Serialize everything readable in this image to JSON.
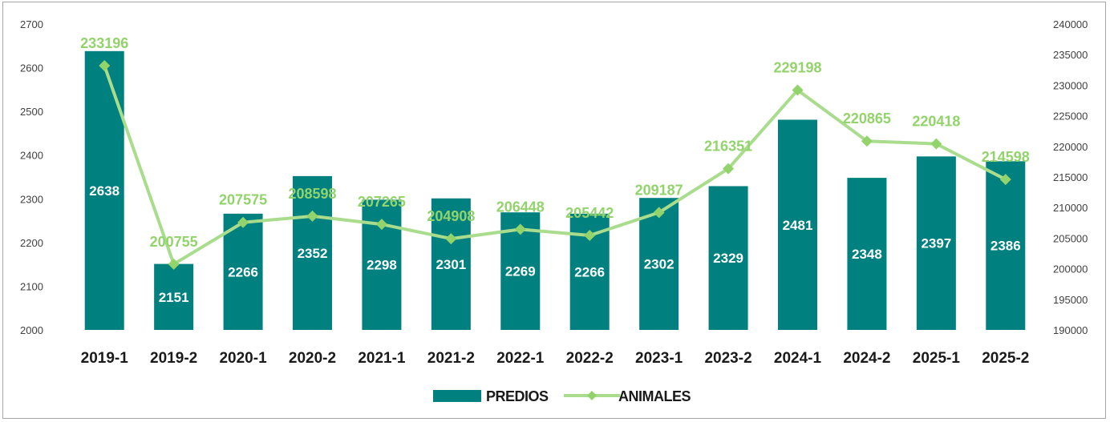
{
  "chart_data": {
    "type": "bar",
    "categories": [
      "2019-1",
      "2019-2",
      "2020-1",
      "2020-2",
      "2021-1",
      "2021-2",
      "2022-1",
      "2022-2",
      "2023-1",
      "2023-2",
      "2024-1",
      "2024-2",
      "2025-1",
      "2025-2"
    ],
    "series": [
      {
        "name": "PREDIOS",
        "type": "bar",
        "axis": "left",
        "color": "#00807f",
        "values": [
          2638,
          2151,
          2266,
          2352,
          2298,
          2301,
          2269,
          2266,
          2302,
          2329,
          2481,
          2348,
          2397,
          2386
        ]
      },
      {
        "name": "ANIMALES",
        "type": "line",
        "axis": "right",
        "color": "#a9dc8c",
        "label_color": "#92d46b",
        "marker": "diamond",
        "values": [
          233196,
          200755,
          207575,
          208598,
          207265,
          204908,
          206448,
          205442,
          209187,
          216351,
          229198,
          220865,
          220418,
          214598
        ]
      }
    ],
    "ylim_left": [
      2000,
      2700
    ],
    "yticks_left": [
      "2000",
      "2100",
      "2200",
      "2300",
      "2400",
      "2500",
      "2600",
      "2700"
    ],
    "ylim_right": [
      190000,
      240000
    ],
    "yticks_right": [
      "190000",
      "195000",
      "200000",
      "205000",
      "210000",
      "215000",
      "220000",
      "225000",
      "230000",
      "235000",
      "240000"
    ],
    "legend_position": "bottom",
    "grid": false
  }
}
